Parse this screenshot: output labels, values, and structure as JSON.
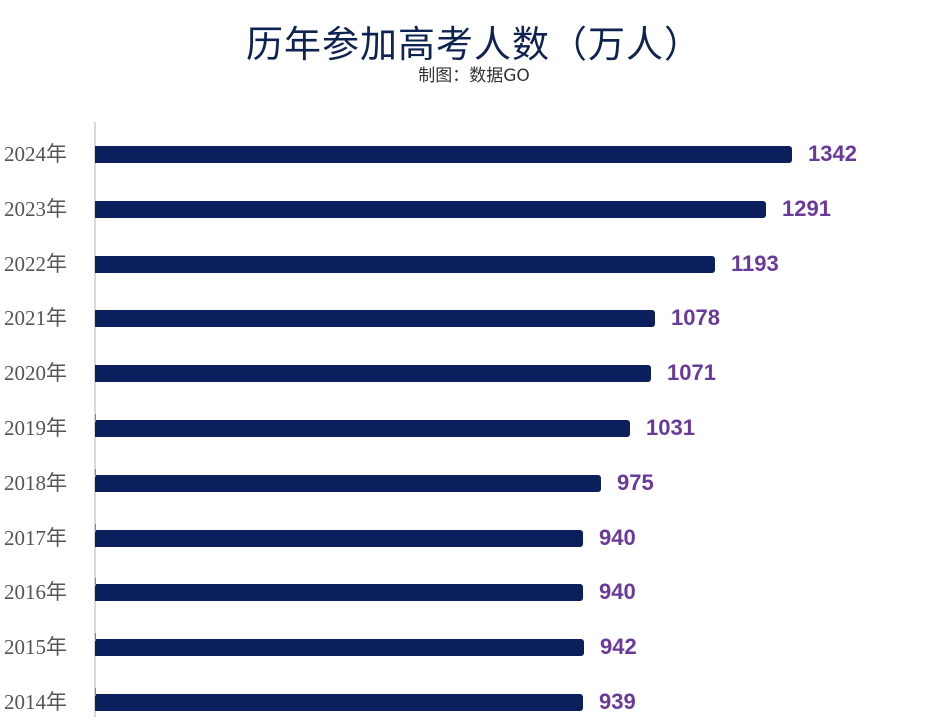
{
  "header": {
    "title": "历年参加高考人数（万人）",
    "subtitle": "制图：数据GO"
  },
  "colors": {
    "bar": "#0b1f5c",
    "value_label": "#6a3a9a",
    "title": "#0f2352"
  },
  "rows": [
    {
      "label": "2024年",
      "value": "1342"
    },
    {
      "label": "2023年",
      "value": "1291"
    },
    {
      "label": "2022年",
      "value": "1193"
    },
    {
      "label": "2021年",
      "value": "1078"
    },
    {
      "label": "2020年",
      "value": "1071"
    },
    {
      "label": "2019年",
      "value": "1031"
    },
    {
      "label": "2018年",
      "value": "975"
    },
    {
      "label": "2017年",
      "value": "940"
    },
    {
      "label": "2016年",
      "value": "940"
    },
    {
      "label": "2015年",
      "value": "942"
    },
    {
      "label": "2014年",
      "value": "939"
    }
  ],
  "chart_data": {
    "type": "bar",
    "orientation": "horizontal",
    "title": "历年参加高考人数（万人）",
    "subtitle": "制图：数据GO",
    "categories": [
      "2024年",
      "2023年",
      "2022年",
      "2021年",
      "2020年",
      "2019年",
      "2018年",
      "2017年",
      "2016年",
      "2015年",
      "2014年"
    ],
    "values": [
      1342,
      1291,
      1193,
      1078,
      1071,
      1031,
      975,
      940,
      940,
      942,
      939
    ],
    "xlabel": "",
    "ylabel": "",
    "unit": "万人",
    "data_labels": true,
    "grid": false,
    "legend": "none"
  }
}
